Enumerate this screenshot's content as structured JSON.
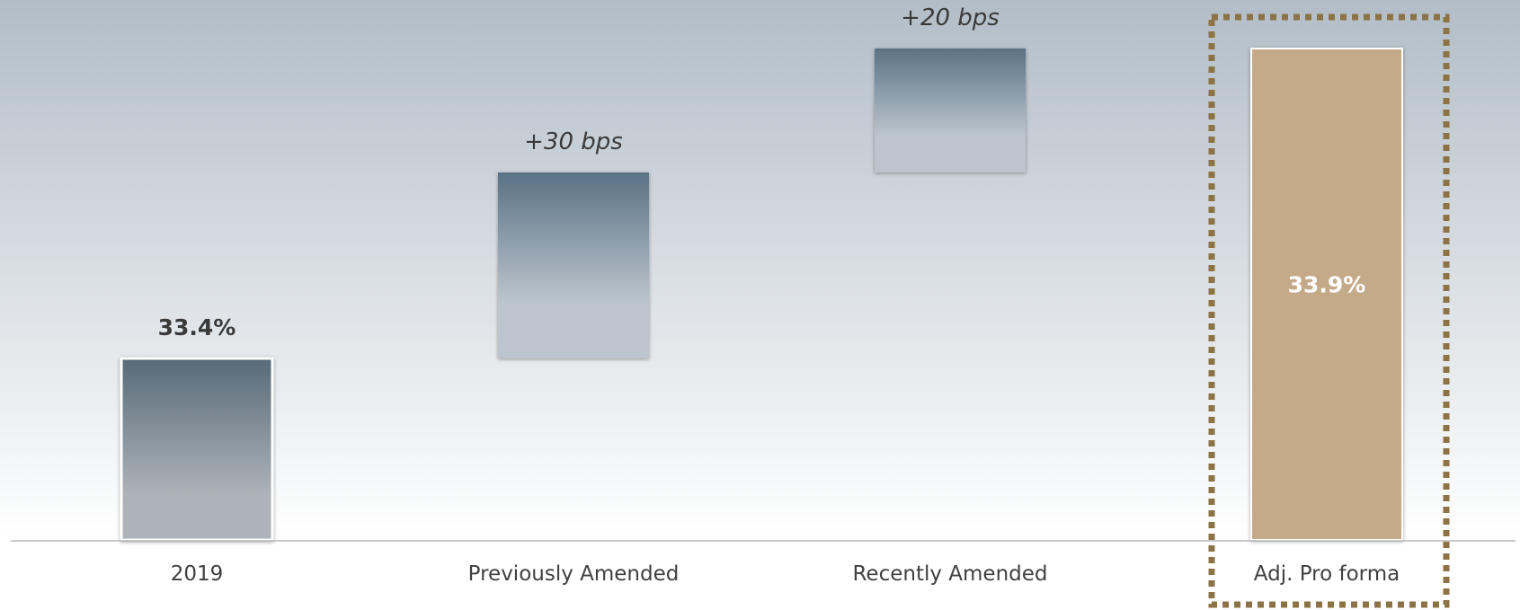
{
  "chart_data": {
    "type": "bar",
    "subtype": "waterfall",
    "title": "",
    "xlabel": "",
    "ylabel": "",
    "categories": [
      "2019",
      "Previously Amended",
      "Recently Amended",
      "Adj. Pro forma"
    ],
    "bars": [
      {
        "category": "2019",
        "kind": "total",
        "start": 0,
        "end": 33.4,
        "label": "33.4%",
        "label_position": "above",
        "label_style": "bold"
      },
      {
        "category": "Previously Amended",
        "kind": "delta",
        "start": 33.4,
        "end": 33.7,
        "label": "+30 bps",
        "label_position": "above",
        "label_style": "italic"
      },
      {
        "category": "Recently Amended",
        "kind": "delta",
        "start": 33.7,
        "end": 33.9,
        "label": "+20 bps",
        "label_position": "above",
        "label_style": "italic"
      },
      {
        "category": "Adj. Pro forma",
        "kind": "total",
        "start": 0,
        "end": 33.9,
        "label": "33.9%",
        "label_position": "inside",
        "label_style": "bold",
        "highlighted": true
      }
    ],
    "grid": false,
    "legend": "none",
    "colors": {
      "background_top": "#b2bdc7",
      "background_bottom": "#ffffff",
      "bar_top": "#5a7285",
      "bar_bottom": "#bcc5cd",
      "first_bar_top": "#586a78",
      "first_bar_bottom": "#adb3b8",
      "highlight_bar": "#c4aa89",
      "highlight_border": "#8c7345",
      "axis_line": "#aaaaaa",
      "label_dark": "#3a3a3a",
      "label_light": "#ffffff",
      "tick_text": "#404040"
    }
  }
}
